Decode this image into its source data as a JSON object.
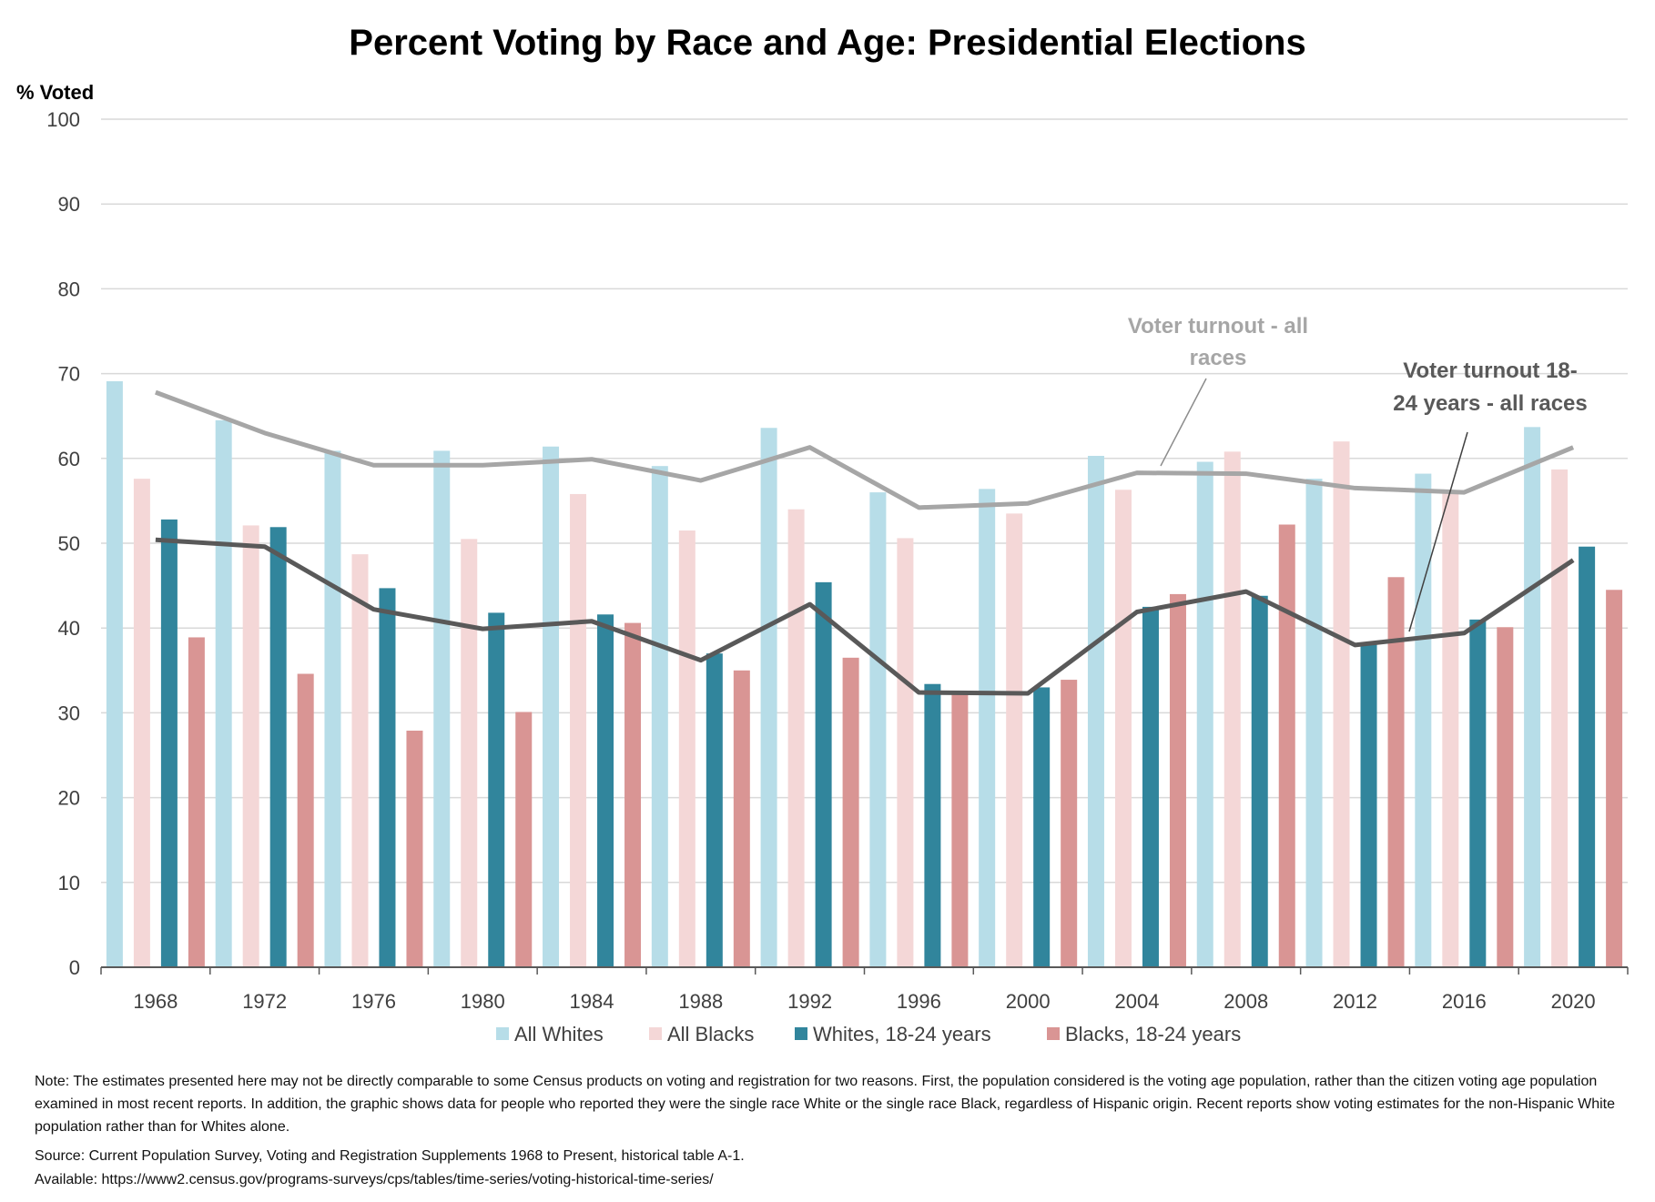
{
  "chart_data": {
    "type": "bar",
    "title": "Percent Voting by Race and Age:  Presidential Elections",
    "ylabel": "% Voted",
    "xlabel": "",
    "ylim": [
      0,
      100
    ],
    "yticks": [
      0,
      10,
      20,
      30,
      40,
      50,
      60,
      70,
      80,
      90,
      100
    ],
    "grid": true,
    "legend_position": "bottom",
    "categories": [
      "1968",
      "1972",
      "1976",
      "1980",
      "1984",
      "1988",
      "1992",
      "1996",
      "2000",
      "2004",
      "2008",
      "2012",
      "2016",
      "2020"
    ],
    "series": [
      {
        "name": "All Whites",
        "type": "bar",
        "color": "#b7dde8",
        "values": [
          69.1,
          64.5,
          60.9,
          60.9,
          61.4,
          59.1,
          63.6,
          56.0,
          56.4,
          60.3,
          59.6,
          57.6,
          58.2,
          63.7
        ]
      },
      {
        "name": "All Blacks",
        "type": "bar",
        "color": "#f4d7d7",
        "values": [
          57.6,
          52.1,
          48.7,
          50.5,
          55.8,
          51.5,
          54.0,
          50.6,
          53.5,
          56.3,
          60.8,
          62.0,
          55.9,
          58.7
        ]
      },
      {
        "name": "Whites, 18-24 years",
        "type": "bar",
        "color": "#31859c",
        "values": [
          52.8,
          51.9,
          44.7,
          41.8,
          41.6,
          37.0,
          45.4,
          33.4,
          33.0,
          42.5,
          43.8,
          38.1,
          41.0,
          49.6
        ]
      },
      {
        "name": "Blacks, 18-24 years",
        "type": "bar",
        "color": "#d99594",
        "values": [
          38.9,
          34.6,
          27.9,
          30.1,
          40.6,
          35.0,
          36.5,
          32.4,
          33.9,
          44.0,
          52.2,
          46.0,
          40.1,
          44.5
        ]
      }
    ],
    "lines": [
      {
        "label": "Voter turnout - all races",
        "color": "#a6a6a6",
        "values": [
          67.8,
          63.0,
          59.2,
          59.2,
          59.9,
          57.4,
          61.3,
          54.2,
          54.7,
          58.3,
          58.2,
          56.5,
          56.0,
          61.3
        ]
      },
      {
        "label": "Voter turnout 18-24 years - all races",
        "color": "#595959",
        "values": [
          50.4,
          49.6,
          42.2,
          39.9,
          40.8,
          36.2,
          42.8,
          32.4,
          32.3,
          41.9,
          44.3,
          38.0,
          39.4,
          48.0
        ]
      }
    ],
    "annotations": [
      {
        "text": [
          "Voter turnout - all",
          "races"
        ],
        "color": "#a6a6a6"
      },
      {
        "text": [
          "Voter turnout 18-",
          "24 years - all races"
        ],
        "color": "#595959"
      }
    ]
  },
  "notes": {
    "note": "Note: The estimates presented here may not be directly comparable to some Census products on voting and registration for two reasons. First, the population considered is the voting age population, rather than the citizen voting age population examined in most recent reports. In addition, the graphic shows data for people who reported they were the single race White or the single race Black, regardless of Hispanic origin. Recent reports show voting estimates for the non-Hispanic White population rather than for Whites alone.",
    "source": "Source: Current Population Survey, Voting and Registration Supplements 1968 to Present, historical table A-1.",
    "available": "Available: https://www2.census.gov/programs-surveys/cps/tables/time-series/voting-historical-time-series/"
  }
}
